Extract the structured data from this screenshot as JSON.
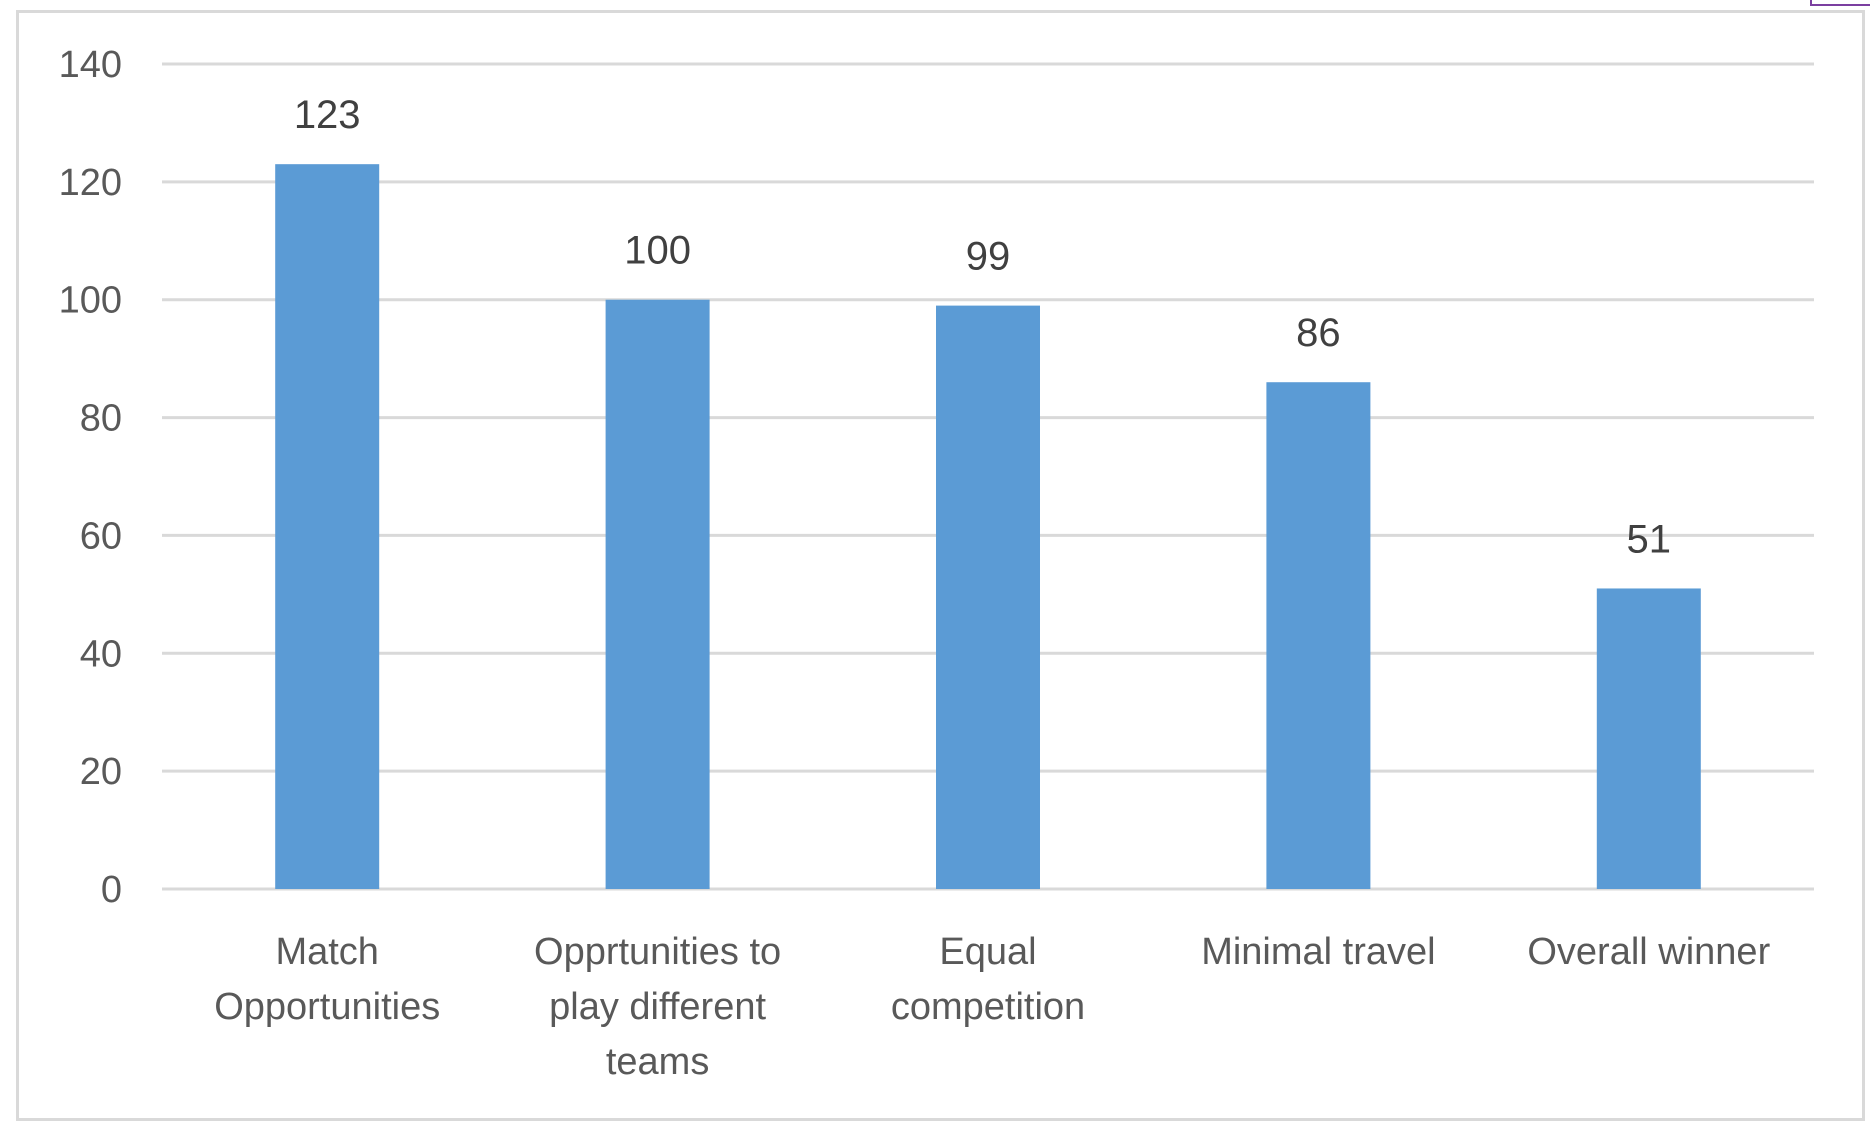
{
  "chart_data": {
    "type": "bar",
    "categories": [
      [
        "Match",
        "Opportunities"
      ],
      [
        "Opprtunities to",
        "play different",
        "teams"
      ],
      [
        "Equal",
        "competition"
      ],
      [
        "Minimal travel"
      ],
      [
        "Overall winner"
      ]
    ],
    "values": [
      123,
      100,
      99,
      86,
      51
    ],
    "data_labels": [
      "123",
      "100",
      "99",
      "86",
      "51"
    ],
    "title": "",
    "xlabel": "",
    "ylabel": "",
    "ylim": [
      0,
      140
    ],
    "yticks": [
      0,
      20,
      40,
      60,
      80,
      100,
      120,
      140
    ],
    "grid": true,
    "legend": "none",
    "bar_color": "#5b9bd5",
    "grid_color": "#d9d9d9"
  }
}
